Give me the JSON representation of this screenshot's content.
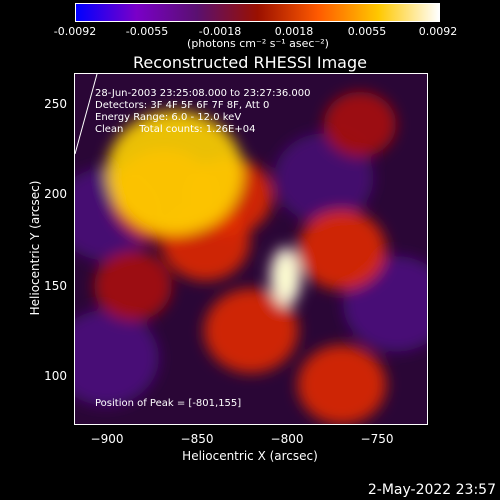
{
  "colorbar": {
    "ticks": [
      "-0.0092",
      "-0.0055",
      "-0.0018",
      "0.0018",
      "0.0055",
      "0.0092"
    ],
    "tick_values": [
      -0.0092,
      -0.0055,
      -0.0018,
      0.0018,
      0.0055,
      0.0092
    ],
    "range": [
      -0.0092,
      0.0092
    ],
    "units": "(photons cm⁻² s⁻¹ asec⁻²)",
    "colors": [
      "#0000ff",
      "#7a00c8",
      "#5a1070",
      "#9a1000",
      "#ff5a00",
      "#ffc800",
      "#ffffff"
    ]
  },
  "header": {
    "title": "Reconstructed RHESSI Image"
  },
  "overlay": {
    "line1": "28-Jun-2003 23:25:08.000 to 23:27:36.000",
    "line2": "Detectors: 3F 4F 5F 6F 7F 8F, Att 0",
    "line3": "Energy Range: 6.0 - 12.0 keV",
    "line4": "Clean     Total counts: 1.26E+04"
  },
  "peak": {
    "label": "Position of Peak = [-801,155]"
  },
  "footer": {
    "timestamp": "2-May-2022 23:57"
  },
  "chart_data": {
    "type": "heatmap",
    "title": "Reconstructed RHESSI Image",
    "xlabel": "Heliocentric X (arcsec)",
    "ylabel": "Heliocentric Y (arcsec)",
    "xlim": [
      -917,
      -722
    ],
    "ylim": [
      72,
      268
    ],
    "xticks": [
      -900,
      -850,
      -800,
      -750
    ],
    "xtick_labels": [
      "−900",
      "−850",
      "−800",
      "−750"
    ],
    "yticks": [
      100,
      150,
      200,
      250
    ],
    "ytick_labels": [
      "100",
      "150",
      "200",
      "250"
    ],
    "value_range": [
      -0.0092,
      0.0092
    ],
    "peak_position": [
      -801,
      155
    ],
    "sources": [
      {
        "x": -801,
        "y": 155,
        "value": 0.0092
      },
      {
        "x": -862,
        "y": 213,
        "value": 0.0075
      },
      {
        "x": -868,
        "y": 200,
        "value": 0.0045
      },
      {
        "x": -845,
        "y": 175,
        "value": 0.003
      },
      {
        "x": -832,
        "y": 200,
        "value": 0.0028
      },
      {
        "x": -820,
        "y": 125,
        "value": 0.0035
      },
      {
        "x": -770,
        "y": 170,
        "value": 0.003
      },
      {
        "x": -770,
        "y": 95,
        "value": 0.003
      },
      {
        "x": -885,
        "y": 150,
        "value": 0.002
      },
      {
        "x": -760,
        "y": 240,
        "value": 0.0015
      },
      {
        "x": -900,
        "y": 110,
        "value": -0.004
      },
      {
        "x": -740,
        "y": 140,
        "value": -0.004
      },
      {
        "x": -900,
        "y": 190,
        "value": -0.0035
      },
      {
        "x": -780,
        "y": 210,
        "value": -0.003
      }
    ]
  }
}
